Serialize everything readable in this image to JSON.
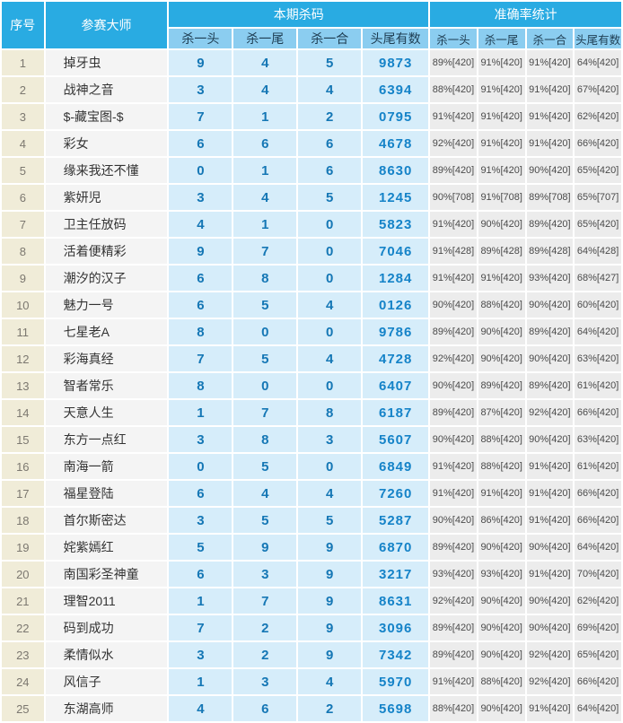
{
  "colors": {
    "header_blue": "#29abe2",
    "subheader_blue": "#8bcdf0",
    "kill_cell_bg": "#d6edfa",
    "accuracy_cell_bg": "#ececec",
    "index_cell_bg": "#f0ecd8",
    "master_cell_bg": "#f4f4f4",
    "number_blue": "#1577b5",
    "headtail_blue": "#1583c8"
  },
  "table": {
    "header": {
      "col_index": "序号",
      "col_master": "参赛大师",
      "group_kill": "本期杀码",
      "group_accuracy": "准确率统计",
      "kill_subcols": [
        "杀一头",
        "杀一尾",
        "杀一合",
        "头尾有数"
      ],
      "accuracy_subcols": [
        "杀一头",
        "杀一尾",
        "杀一合",
        "头尾有数"
      ]
    },
    "rows": [
      {
        "no": "1",
        "master": "掉牙虫",
        "kill_head": "9",
        "kill_tail": "4",
        "kill_sum": "5",
        "headtail": "9873",
        "acc_head": "89%[420]",
        "acc_tail": "91%[420]",
        "acc_sum": "91%[420]",
        "acc_headtail": "64%[420]"
      },
      {
        "no": "2",
        "master": "战神之音",
        "kill_head": "3",
        "kill_tail": "4",
        "kill_sum": "4",
        "headtail": "6394",
        "acc_head": "88%[420]",
        "acc_tail": "91%[420]",
        "acc_sum": "91%[420]",
        "acc_headtail": "67%[420]"
      },
      {
        "no": "3",
        "master": "$-藏宝图-$",
        "kill_head": "7",
        "kill_tail": "1",
        "kill_sum": "2",
        "headtail": "0795",
        "acc_head": "91%[420]",
        "acc_tail": "91%[420]",
        "acc_sum": "91%[420]",
        "acc_headtail": "62%[420]"
      },
      {
        "no": "4",
        "master": "彩女",
        "kill_head": "6",
        "kill_tail": "6",
        "kill_sum": "6",
        "headtail": "4678",
        "acc_head": "92%[420]",
        "acc_tail": "91%[420]",
        "acc_sum": "91%[420]",
        "acc_headtail": "66%[420]"
      },
      {
        "no": "5",
        "master": "缘来我还不懂",
        "kill_head": "0",
        "kill_tail": "1",
        "kill_sum": "6",
        "headtail": "8630",
        "acc_head": "89%[420]",
        "acc_tail": "91%[420]",
        "acc_sum": "90%[420]",
        "acc_headtail": "65%[420]"
      },
      {
        "no": "6",
        "master": "紫妍児",
        "kill_head": "3",
        "kill_tail": "4",
        "kill_sum": "5",
        "headtail": "1245",
        "acc_head": "90%[708]",
        "acc_tail": "91%[708]",
        "acc_sum": "89%[708]",
        "acc_headtail": "65%[707]"
      },
      {
        "no": "7",
        "master": "卫主任放码",
        "kill_head": "4",
        "kill_tail": "1",
        "kill_sum": "0",
        "headtail": "5823",
        "acc_head": "91%[420]",
        "acc_tail": "90%[420]",
        "acc_sum": "89%[420]",
        "acc_headtail": "65%[420]"
      },
      {
        "no": "8",
        "master": "活着便精彩",
        "kill_head": "9",
        "kill_tail": "7",
        "kill_sum": "0",
        "headtail": "7046",
        "acc_head": "91%[428]",
        "acc_tail": "89%[428]",
        "acc_sum": "89%[428]",
        "acc_headtail": "64%[428]"
      },
      {
        "no": "9",
        "master": "潮汐的汉子",
        "kill_head": "6",
        "kill_tail": "8",
        "kill_sum": "0",
        "headtail": "1284",
        "acc_head": "91%[420]",
        "acc_tail": "91%[420]",
        "acc_sum": "93%[420]",
        "acc_headtail": "68%[427]"
      },
      {
        "no": "10",
        "master": "魅力一号",
        "kill_head": "6",
        "kill_tail": "5",
        "kill_sum": "4",
        "headtail": "0126",
        "acc_head": "90%[420]",
        "acc_tail": "88%[420]",
        "acc_sum": "90%[420]",
        "acc_headtail": "60%[420]"
      },
      {
        "no": "11",
        "master": "七星老A",
        "kill_head": "8",
        "kill_tail": "0",
        "kill_sum": "0",
        "headtail": "9786",
        "acc_head": "89%[420]",
        "acc_tail": "90%[420]",
        "acc_sum": "89%[420]",
        "acc_headtail": "64%[420]"
      },
      {
        "no": "12",
        "master": "彩海真经",
        "kill_head": "7",
        "kill_tail": "5",
        "kill_sum": "4",
        "headtail": "4728",
        "acc_head": "92%[420]",
        "acc_tail": "90%[420]",
        "acc_sum": "90%[420]",
        "acc_headtail": "63%[420]"
      },
      {
        "no": "13",
        "master": "智者常乐",
        "kill_head": "8",
        "kill_tail": "0",
        "kill_sum": "0",
        "headtail": "6407",
        "acc_head": "90%[420]",
        "acc_tail": "89%[420]",
        "acc_sum": "89%[420]",
        "acc_headtail": "61%[420]"
      },
      {
        "no": "14",
        "master": "天意人生",
        "kill_head": "1",
        "kill_tail": "7",
        "kill_sum": "8",
        "headtail": "6187",
        "acc_head": "89%[420]",
        "acc_tail": "87%[420]",
        "acc_sum": "92%[420]",
        "acc_headtail": "66%[420]"
      },
      {
        "no": "15",
        "master": "东方一点红",
        "kill_head": "3",
        "kill_tail": "8",
        "kill_sum": "3",
        "headtail": "5607",
        "acc_head": "90%[420]",
        "acc_tail": "88%[420]",
        "acc_sum": "90%[420]",
        "acc_headtail": "63%[420]"
      },
      {
        "no": "16",
        "master": "南海一箭",
        "kill_head": "0",
        "kill_tail": "5",
        "kill_sum": "0",
        "headtail": "6849",
        "acc_head": "91%[420]",
        "acc_tail": "88%[420]",
        "acc_sum": "91%[420]",
        "acc_headtail": "61%[420]"
      },
      {
        "no": "17",
        "master": "福星登陆",
        "kill_head": "6",
        "kill_tail": "4",
        "kill_sum": "4",
        "headtail": "7260",
        "acc_head": "91%[420]",
        "acc_tail": "91%[420]",
        "acc_sum": "91%[420]",
        "acc_headtail": "66%[420]"
      },
      {
        "no": "18",
        "master": "首尔斯密达",
        "kill_head": "3",
        "kill_tail": "5",
        "kill_sum": "5",
        "headtail": "5287",
        "acc_head": "90%[420]",
        "acc_tail": "86%[420]",
        "acc_sum": "91%[420]",
        "acc_headtail": "66%[420]"
      },
      {
        "no": "19",
        "master": "姹紫嫣红",
        "kill_head": "5",
        "kill_tail": "9",
        "kill_sum": "9",
        "headtail": "6870",
        "acc_head": "89%[420]",
        "acc_tail": "90%[420]",
        "acc_sum": "90%[420]",
        "acc_headtail": "64%[420]"
      },
      {
        "no": "20",
        "master": "南国彩圣神童",
        "kill_head": "6",
        "kill_tail": "3",
        "kill_sum": "9",
        "headtail": "3217",
        "acc_head": "93%[420]",
        "acc_tail": "93%[420]",
        "acc_sum": "91%[420]",
        "acc_headtail": "70%[420]"
      },
      {
        "no": "21",
        "master": "理智2011",
        "kill_head": "1",
        "kill_tail": "7",
        "kill_sum": "9",
        "headtail": "8631",
        "acc_head": "92%[420]",
        "acc_tail": "90%[420]",
        "acc_sum": "90%[420]",
        "acc_headtail": "62%[420]"
      },
      {
        "no": "22",
        "master": "码到成功",
        "kill_head": "7",
        "kill_tail": "2",
        "kill_sum": "9",
        "headtail": "3096",
        "acc_head": "89%[420]",
        "acc_tail": "90%[420]",
        "acc_sum": "90%[420]",
        "acc_headtail": "69%[420]"
      },
      {
        "no": "23",
        "master": "柔情似水",
        "kill_head": "3",
        "kill_tail": "2",
        "kill_sum": "9",
        "headtail": "7342",
        "acc_head": "89%[420]",
        "acc_tail": "90%[420]",
        "acc_sum": "92%[420]",
        "acc_headtail": "65%[420]"
      },
      {
        "no": "24",
        "master": "风信子",
        "kill_head": "1",
        "kill_tail": "3",
        "kill_sum": "4",
        "headtail": "5970",
        "acc_head": "91%[420]",
        "acc_tail": "88%[420]",
        "acc_sum": "92%[420]",
        "acc_headtail": "66%[420]"
      },
      {
        "no": "25",
        "master": "东湖高师",
        "kill_head": "4",
        "kill_tail": "6",
        "kill_sum": "2",
        "headtail": "5698",
        "acc_head": "88%[420]",
        "acc_tail": "90%[420]",
        "acc_sum": "91%[420]",
        "acc_headtail": "64%[420]"
      }
    ]
  }
}
